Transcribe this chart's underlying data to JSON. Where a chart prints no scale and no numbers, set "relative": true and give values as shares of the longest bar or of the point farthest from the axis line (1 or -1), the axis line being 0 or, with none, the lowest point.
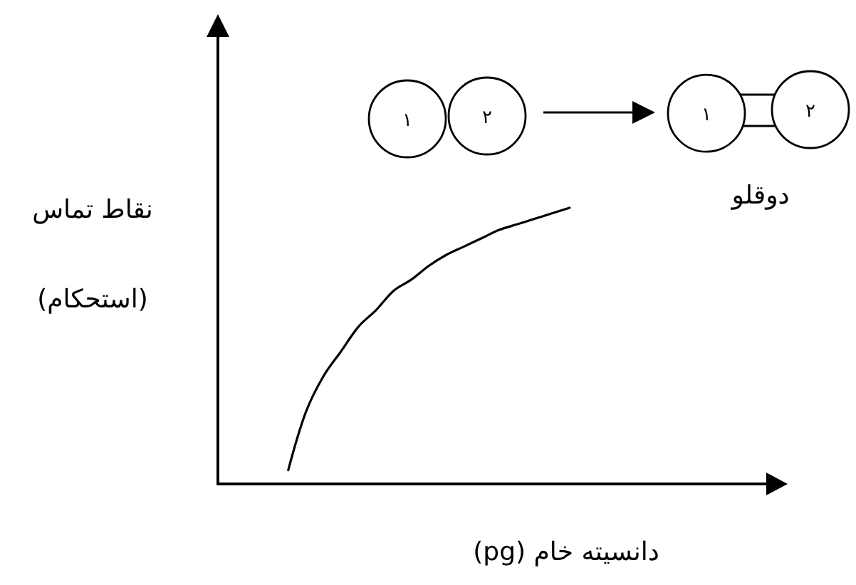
{
  "chart_data": {
    "type": "line",
    "relative": true,
    "xlabel": "دانسیته خام (pg)",
    "ylabel": "نقاط تماس\n(استحکام)",
    "marker": "none",
    "annotations": [
      "۱",
      "۲",
      "۱",
      "۲",
      "دوقلو"
    ],
    "categories": [
      null,
      null,
      null,
      null,
      null,
      null,
      null,
      null,
      null,
      null,
      null,
      null,
      null,
      null,
      null,
      null,
      null,
      null,
      null,
      null,
      null,
      null,
      null,
      null,
      null,
      null,
      null,
      null,
      null,
      null,
      null,
      null,
      null
    ],
    "series": [
      {
        "color": "#000000",
        "values": [
          null,
          null,
          null,
          null,
          0.05,
          0.26,
          0.39,
          0.48,
          0.57,
          0.63,
          0.7,
          0.74,
          0.79,
          0.83,
          0.86,
          0.89,
          0.92,
          0.94,
          0.96,
          0.98,
          1,
          null,
          null,
          null,
          null,
          null,
          null,
          null,
          null,
          null,
          null,
          null,
          null
        ]
      }
    ]
  }
}
